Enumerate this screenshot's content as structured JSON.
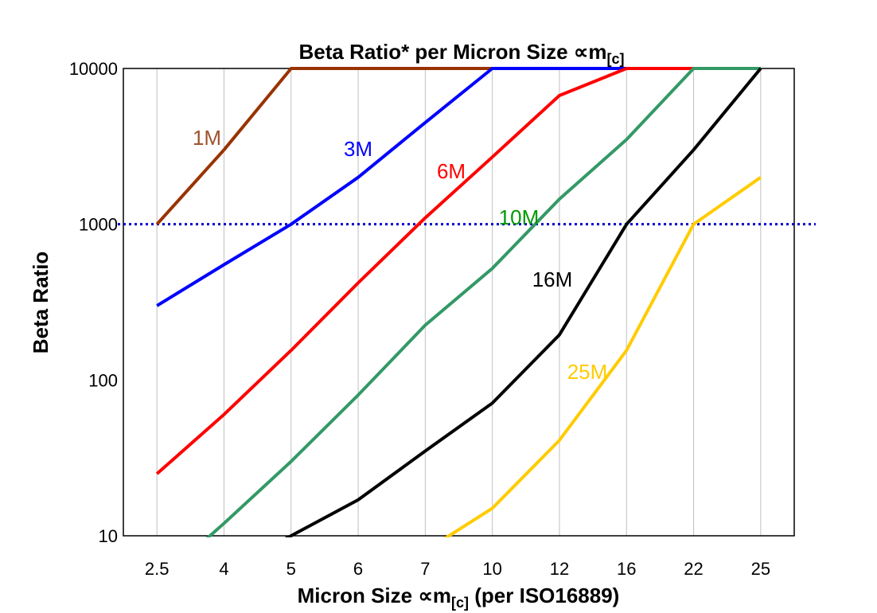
{
  "chart_data": {
    "type": "line",
    "title": "Beta Ratio* per Micron Size ∝m",
    "title_sub": "[c]",
    "xlabel": "Micron Size ∝m",
    "xlabel_sub": "[c]",
    "xlabel_suffix": " (per ISO16889)",
    "ylabel": "Beta Ratio",
    "yscale": "log",
    "ylim": [
      10,
      10000
    ],
    "yticks": [
      "10",
      "100",
      "1000",
      "10000"
    ],
    "grid": "vertical",
    "categories": [
      "2.5",
      "4",
      "5",
      "6",
      "7",
      "10",
      "12",
      "16",
      "22",
      "25"
    ],
    "reference_line": {
      "value": 1000,
      "color": "#0000CC",
      "style": "dotted"
    },
    "series": [
      {
        "name": "1M",
        "color": "#993300",
        "label_color": "#A0522D",
        "values": [
          1000,
          3000,
          10000,
          10000,
          10000,
          10000,
          10000,
          10000,
          10000,
          10000
        ]
      },
      {
        "name": "3M",
        "color": "#0000FF",
        "label_color": "#0000FF",
        "values": [
          300,
          550,
          1000,
          2000,
          4500,
          10000,
          10000,
          10000,
          10000,
          10000
        ]
      },
      {
        "name": "6M",
        "color": "#FF0000",
        "label_color": "#FF0000",
        "values": [
          25,
          60,
          155,
          420,
          1100,
          2700,
          6700,
          10000,
          10000,
          10000
        ]
      },
      {
        "name": "10M",
        "color": "#339966",
        "label_color": "#009900",
        "values": [
          5,
          12,
          30,
          80,
          225,
          520,
          1450,
          3500,
          10000,
          10000
        ]
      },
      {
        "name": "16M",
        "color": "#000000",
        "label_color": "#000000",
        "values": [
          null,
          6,
          10,
          17,
          35,
          71,
          195,
          1000,
          3000,
          10000
        ]
      },
      {
        "name": "25M",
        "color": "#FFCC00",
        "label_color": "#FFCC00",
        "values": [
          null,
          null,
          null,
          null,
          8,
          15,
          41,
          155,
          1000,
          2000
        ]
      }
    ]
  }
}
